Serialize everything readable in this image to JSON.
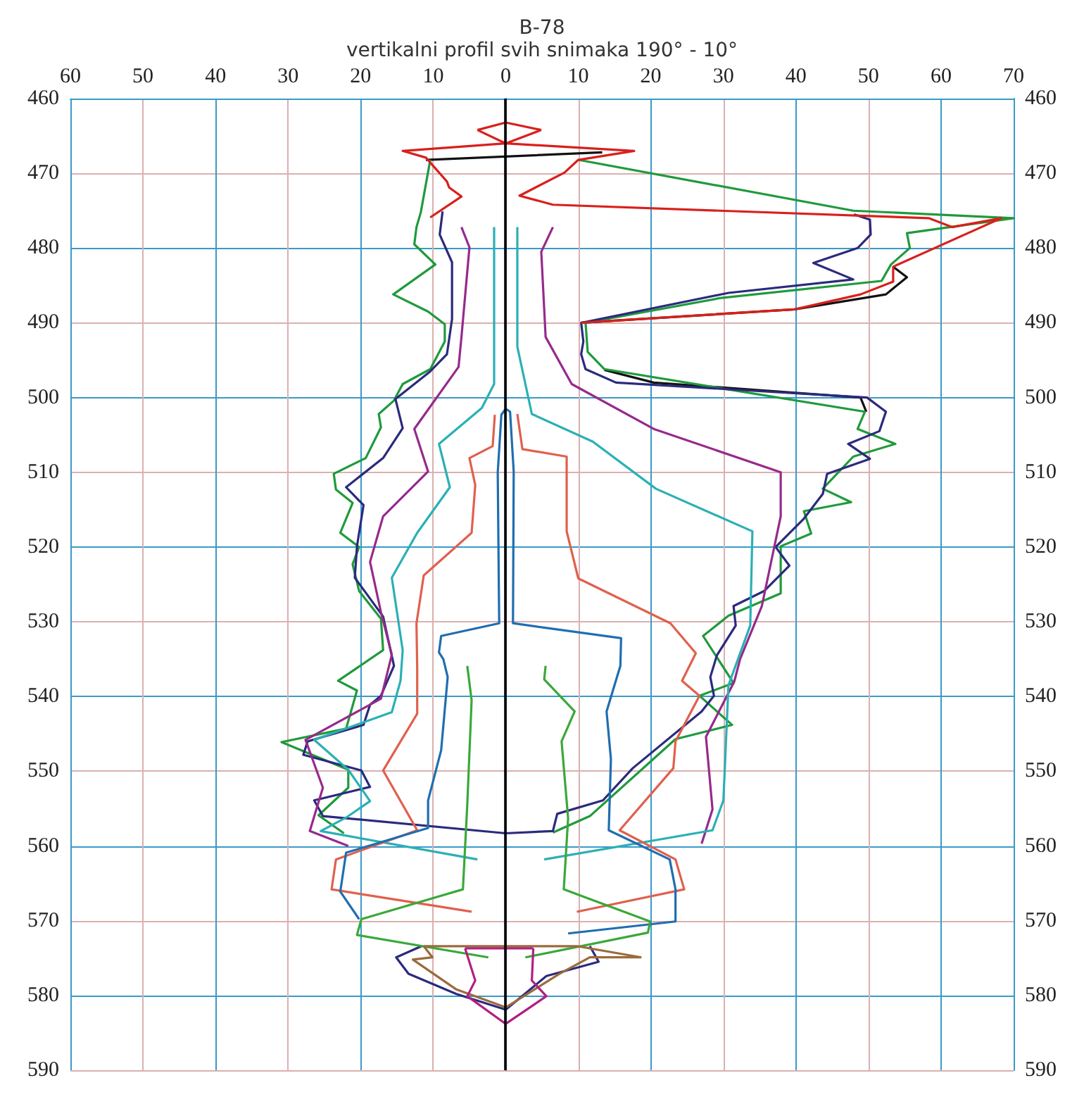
{
  "chart_data": {
    "type": "line",
    "title": "B-78",
    "subtitle": "vertikalni profil svih snimaka 190° - 10°",
    "xlim": [
      -60,
      70
    ],
    "xticks": [
      {
        "value": -60,
        "label": "60"
      },
      {
        "value": -50,
        "label": "50"
      },
      {
        "value": -40,
        "label": "40"
      },
      {
        "value": -30,
        "label": "30"
      },
      {
        "value": -20,
        "label": "20"
      },
      {
        "value": -10,
        "label": "10"
      },
      0,
      10,
      20,
      30,
      40,
      50,
      60,
      70
    ],
    "ylim": [
      590,
      460
    ],
    "yticks": [
      460,
      470,
      480,
      490,
      500,
      510,
      520,
      530,
      540,
      550,
      560,
      570,
      580,
      590
    ],
    "y2lim": [
      590,
      460
    ],
    "y2ticks": [
      460,
      470,
      480,
      490,
      500,
      510,
      520,
      530,
      540,
      550,
      560,
      570,
      580,
      590
    ],
    "grid": true,
    "marker": "none",
    "line_style": "solid",
    "ref_lines": [
      {
        "axis": "x",
        "value": 0,
        "color": "#000000"
      }
    ],
    "series": [
      {
        "color": "#111111",
        "x": [
          -11,
          13.3,
          null,
          10.4,
          39.8,
          52.4,
          55.3,
          53.4,
          null,
          13.6,
          20.4,
          48.9,
          49.7
        ],
        "values": [
          468.2,
          467.2,
          null,
          490,
          488.2,
          486.2,
          483.9,
          482.5,
          null,
          496.3,
          498,
          500,
          501.9
        ]
      },
      {
        "color": "#1f9a3c",
        "x": [
          -10.4,
          -11.7,
          -12.3,
          -12.6,
          -9.7,
          -15.5,
          -10.7,
          -8.4,
          -8.4,
          -10.4,
          -14.2,
          -15.4,
          -17.5,
          -17.2,
          -19.3,
          -23.7,
          -23.4,
          -21.1,
          -22.8,
          -20.2,
          -21.1,
          -20.2,
          -17.2,
          -16.9,
          -23.1,
          -20.5,
          -22,
          -30.9,
          -21.7,
          -21.7,
          -25.8,
          -22.3,
          null,
          10,
          47.9,
          70,
          55.3,
          55.7,
          53.1,
          51.8,
          29.5,
          11,
          11.3,
          13.6,
          49.5,
          48.5,
          53.7,
          47.9,
          43.7,
          47.6,
          41.1,
          42.1,
          37.9,
          37.9,
          30.7,
          27.2,
          31.4,
          26.7,
          31.2,
          23.4,
          11.6,
          6.5
        ],
        "values": [
          468.2,
          475.2,
          477.2,
          479.5,
          482.2,
          486.2,
          488.5,
          490.2,
          492.5,
          496.2,
          498.2,
          500.4,
          502.2,
          504,
          508.1,
          510.2,
          512.3,
          514.1,
          518.1,
          520,
          522.3,
          525.9,
          529.6,
          533.8,
          537.9,
          539.2,
          544.3,
          546.1,
          549.8,
          552.2,
          555.9,
          558.3,
          null,
          468.2,
          475,
          476,
          478,
          480,
          482.2,
          484.4,
          486.7,
          490,
          493.9,
          496.2,
          501.9,
          504.2,
          506.2,
          507.9,
          512.2,
          514,
          515.2,
          518.2,
          519.9,
          526.2,
          529.2,
          531.9,
          538.2,
          539.9,
          543.8,
          545.7,
          556,
          558.2
        ]
      },
      {
        "color": "#2b2a7e",
        "x": [
          -8.7,
          -9.1,
          -7.4,
          -7.4,
          -8.1,
          -10.4,
          -15.2,
          -14.2,
          -16.9,
          -22,
          -19.6,
          -20.5,
          -20.8,
          -16.9,
          -15.4,
          -17.2,
          -18.7,
          -19.6,
          -27.3,
          -27.9,
          -19.9,
          -18.7,
          -26.4,
          -25.2,
          0,
          6.5,
          7.1,
          13.4,
          17.5,
          27,
          28.7,
          28.2,
          29.1,
          31.7,
          31.4,
          35.6,
          39.1,
          37.2,
          41.1,
          43.7,
          44.3,
          50.2,
          47.2,
          51.5,
          52.4,
          49.8,
          15.2,
          11,
          10.4,
          10.7,
          10.4,
          30.7,
          47.9,
          42.4,
          48.5,
          50.3,
          50.2,
          48,
          null,
          -11.6,
          -15.1,
          -13.4,
          -6.8,
          0,
          5.6,
          12.8,
          11.6
        ],
        "values": [
          475.1,
          478.2,
          481.9,
          489.5,
          494.2,
          496.5,
          500.2,
          504.1,
          508.1,
          512,
          514.4,
          519.9,
          524.1,
          529.3,
          535.9,
          539.9,
          541.1,
          543.8,
          546,
          547.8,
          549.9,
          552.1,
          553.9,
          556,
          558.3,
          558,
          555.7,
          553.9,
          549.6,
          542,
          539.9,
          537.4,
          534.5,
          530.5,
          527.9,
          525.9,
          522.5,
          520,
          516.2,
          512.9,
          510.2,
          508.2,
          506.2,
          504.5,
          501.9,
          500,
          498,
          496.2,
          494.2,
          492.5,
          490,
          486,
          484.2,
          482,
          480,
          478.2,
          476.2,
          475.5,
          null,
          573.4,
          574.9,
          577.1,
          579.8,
          581.9,
          577.4,
          575.5,
          573.4
        ]
      },
      {
        "color": "#962a8c",
        "x": [
          -6.1,
          -5,
          -6.1,
          -6.5,
          -12.6,
          -10.7,
          -16.9,
          -18.7,
          -17.2,
          -15.7,
          -17.2,
          -27.6,
          -25.2,
          -27,
          -21.7,
          null,
          6.5,
          4.9,
          5.5,
          9.1,
          20.4,
          37.9,
          37.9,
          35.3,
          32.3,
          31.5,
          27.6,
          28.5,
          27
        ],
        "values": [
          477.2,
          479.9,
          491.9,
          495.9,
          504.2,
          509.9,
          515.9,
          522,
          528.7,
          534.4,
          540.3,
          545.8,
          552.2,
          558,
          560,
          null,
          477.2,
          480.5,
          491.9,
          498.2,
          504.2,
          510,
          515.9,
          527.9,
          535,
          538,
          545.4,
          555.1,
          559.7
        ]
      },
      {
        "color": "#2bb0b5",
        "x": [
          -1.6,
          -1.6,
          -3.3,
          -9.2,
          -7.7,
          -12.2,
          -15.7,
          -14.2,
          -14.5,
          -15.7,
          -26.4,
          -21.7,
          -18.7,
          -22,
          -25.5,
          -3.9,
          null,
          1.6,
          1.6,
          3.6,
          12,
          20.7,
          34,
          33.7,
          30.7,
          30,
          28.5,
          5.3
        ],
        "values": [
          477.2,
          498.2,
          501.4,
          506.2,
          512,
          518.1,
          524.1,
          533.8,
          537.9,
          542.1,
          545.8,
          549.8,
          554,
          556.2,
          558,
          561.8,
          null,
          477.2,
          493.2,
          502.2,
          505.9,
          512.2,
          517.9,
          530.5,
          538.5,
          553.9,
          557.9,
          561.8
        ]
      },
      {
        "color": "#e0604e",
        "x": [
          -1.5,
          -1.8,
          -5,
          -4.2,
          -4.7,
          -11.3,
          -12.3,
          -12.2,
          -12.2,
          -16.9,
          -12.2,
          -23.4,
          -24,
          -4.7,
          null,
          1.6,
          2.3,
          8.4,
          8.4,
          10,
          22.7,
          26.2,
          24.3,
          26.7,
          23.4,
          23.1,
          15.7,
          23.4,
          24.6,
          9.8
        ],
        "values": [
          502.3,
          506.5,
          508.1,
          511.7,
          518.1,
          523.8,
          530.2,
          536.2,
          542.3,
          549.9,
          557.9,
          561.8,
          565.8,
          568.8,
          null,
          502.2,
          506.9,
          507.9,
          517.9,
          524.2,
          530.2,
          534.2,
          537.9,
          539.9,
          546,
          549.6,
          557.9,
          561.8,
          565.8,
          568.8
        ]
      },
      {
        "color": "#1f6eb0",
        "x": [
          -20.2,
          -22.8,
          -22,
          -10.7,
          -10.7,
          -8.9,
          -8,
          -8.6,
          -9.2,
          -8.9,
          -0.9,
          -1.1,
          -0.6,
          0,
          0.6,
          1.1,
          1,
          15.9,
          15.8,
          13.9,
          14.5,
          14.2,
          22.6,
          23.4,
          23.4,
          8.6
        ],
        "values": [
          569.8,
          566.1,
          560.9,
          557.6,
          553.9,
          547.2,
          537.4,
          535,
          534.1,
          531.9,
          530.2,
          510,
          502.3,
          501.5,
          501.9,
          509.9,
          530.2,
          532.2,
          535.9,
          542,
          548.4,
          557.9,
          561.8,
          565.8,
          570.1,
          571.7
        ]
      },
      {
        "color": "#3aa83a",
        "x": [
          -5.3,
          -4.7,
          -5.3,
          -5.9,
          -19.9,
          -20.5,
          -2.4,
          null,
          5.5,
          5.3,
          9.5,
          7.7,
          8.6,
          8,
          19.9,
          19.6,
          2.7
        ],
        "values": [
          535.9,
          540.5,
          554.5,
          565.8,
          569.8,
          571.9,
          574.9,
          null,
          535.9,
          537.7,
          542,
          546,
          556.3,
          565.8,
          570.1,
          571.6,
          574.9
        ]
      },
      {
        "color": "#d8201c",
        "x": [
          -3.9,
          0,
          4.9,
          null,
          -3.9,
          0,
          4.9,
          null,
          -10.4,
          -6.1,
          -7.8,
          -8.1,
          -11,
          -14.2,
          0,
          17.7,
          10,
          8.1,
          1.9,
          6.5,
          58.3,
          61.5,
          68.3,
          53.4,
          53.4,
          48.9,
          39.8,
          10.4
        ],
        "values": [
          464.2,
          463.2,
          464.2,
          null,
          464.2,
          466,
          464.2,
          null,
          475.9,
          473.1,
          471.9,
          471.1,
          467.9,
          467,
          466,
          467,
          468.2,
          469.9,
          473,
          474.2,
          476,
          477.2,
          476,
          482.5,
          484.5,
          486.2,
          488.2,
          490
        ]
      },
      {
        "color": "#9a6b3c",
        "x": [
          -11.3,
          -10.1,
          -12.8,
          -6.8,
          0,
          7.4,
          11.6,
          18.7,
          null,
          18.7,
          9.8,
          -11.3
        ],
        "values": [
          573.4,
          574.9,
          575.2,
          579.2,
          581.6,
          577.1,
          574.9,
          574.9,
          null,
          574.9,
          573.4,
          573.4
        ]
      },
      {
        "color": "#b02080",
        "x": [
          3.8,
          -5.6,
          null,
          -5.6,
          -4.2,
          -5.3,
          0,
          5.6,
          3.6,
          3.8
        ],
        "values": [
          573.7,
          573.7,
          null,
          573.7,
          578,
          580.1,
          583.8,
          580.1,
          578,
          573.7
        ]
      }
    ]
  }
}
